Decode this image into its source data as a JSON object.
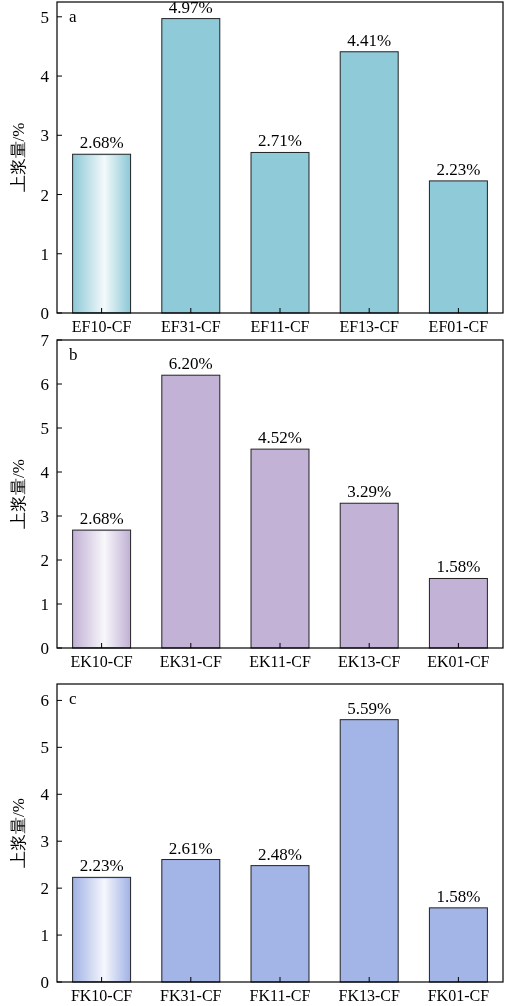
{
  "chart_data": [
    {
      "type": "bar",
      "annotations": [
        "a"
      ],
      "ylabel": "上浆量/%",
      "categories": [
        "EF10-CF",
        "EF31-CF",
        "EF11-CF",
        "EF13-CF",
        "EF01-CF"
      ],
      "values": [
        2.68,
        4.97,
        2.71,
        4.41,
        2.23
      ],
      "value_labels": [
        "2.68%",
        "4.97%",
        "2.71%",
        "4.41%",
        "2.23%"
      ],
      "color": "#8fcad8",
      "ylim": [
        0,
        5.25
      ],
      "yticks": [
        0,
        1,
        2,
        3,
        4,
        5
      ]
    },
    {
      "type": "bar",
      "annotations": [
        "b"
      ],
      "ylabel": "上浆量/%",
      "categories": [
        "EK10-CF",
        "EK31-CF",
        "EK11-CF",
        "EK13-CF",
        "EK01-CF"
      ],
      "values": [
        2.68,
        6.2,
        4.52,
        3.29,
        1.58
      ],
      "value_labels": [
        "2.68%",
        "6.20%",
        "4.52%",
        "3.29%",
        "1.58%"
      ],
      "color": "#c2b2d6",
      "ylim": [
        0,
        7
      ],
      "yticks": [
        0,
        1,
        2,
        3,
        4,
        5,
        6,
        7
      ]
    },
    {
      "type": "bar",
      "annotations": [
        "c"
      ],
      "ylabel": "上浆量/%",
      "categories": [
        "FK10-CF",
        "FK31-CF",
        "FK11-CF",
        "FK13-CF",
        "FK01-CF"
      ],
      "values": [
        2.23,
        2.61,
        2.48,
        5.59,
        1.58
      ],
      "value_labels": [
        "2.23%",
        "2.61%",
        "2.48%",
        "5.59%",
        "1.58%"
      ],
      "color": "#a3b4e6",
      "ylim": [
        0,
        6.35
      ],
      "yticks": [
        0,
        1,
        2,
        3,
        4,
        5,
        6
      ]
    }
  ]
}
